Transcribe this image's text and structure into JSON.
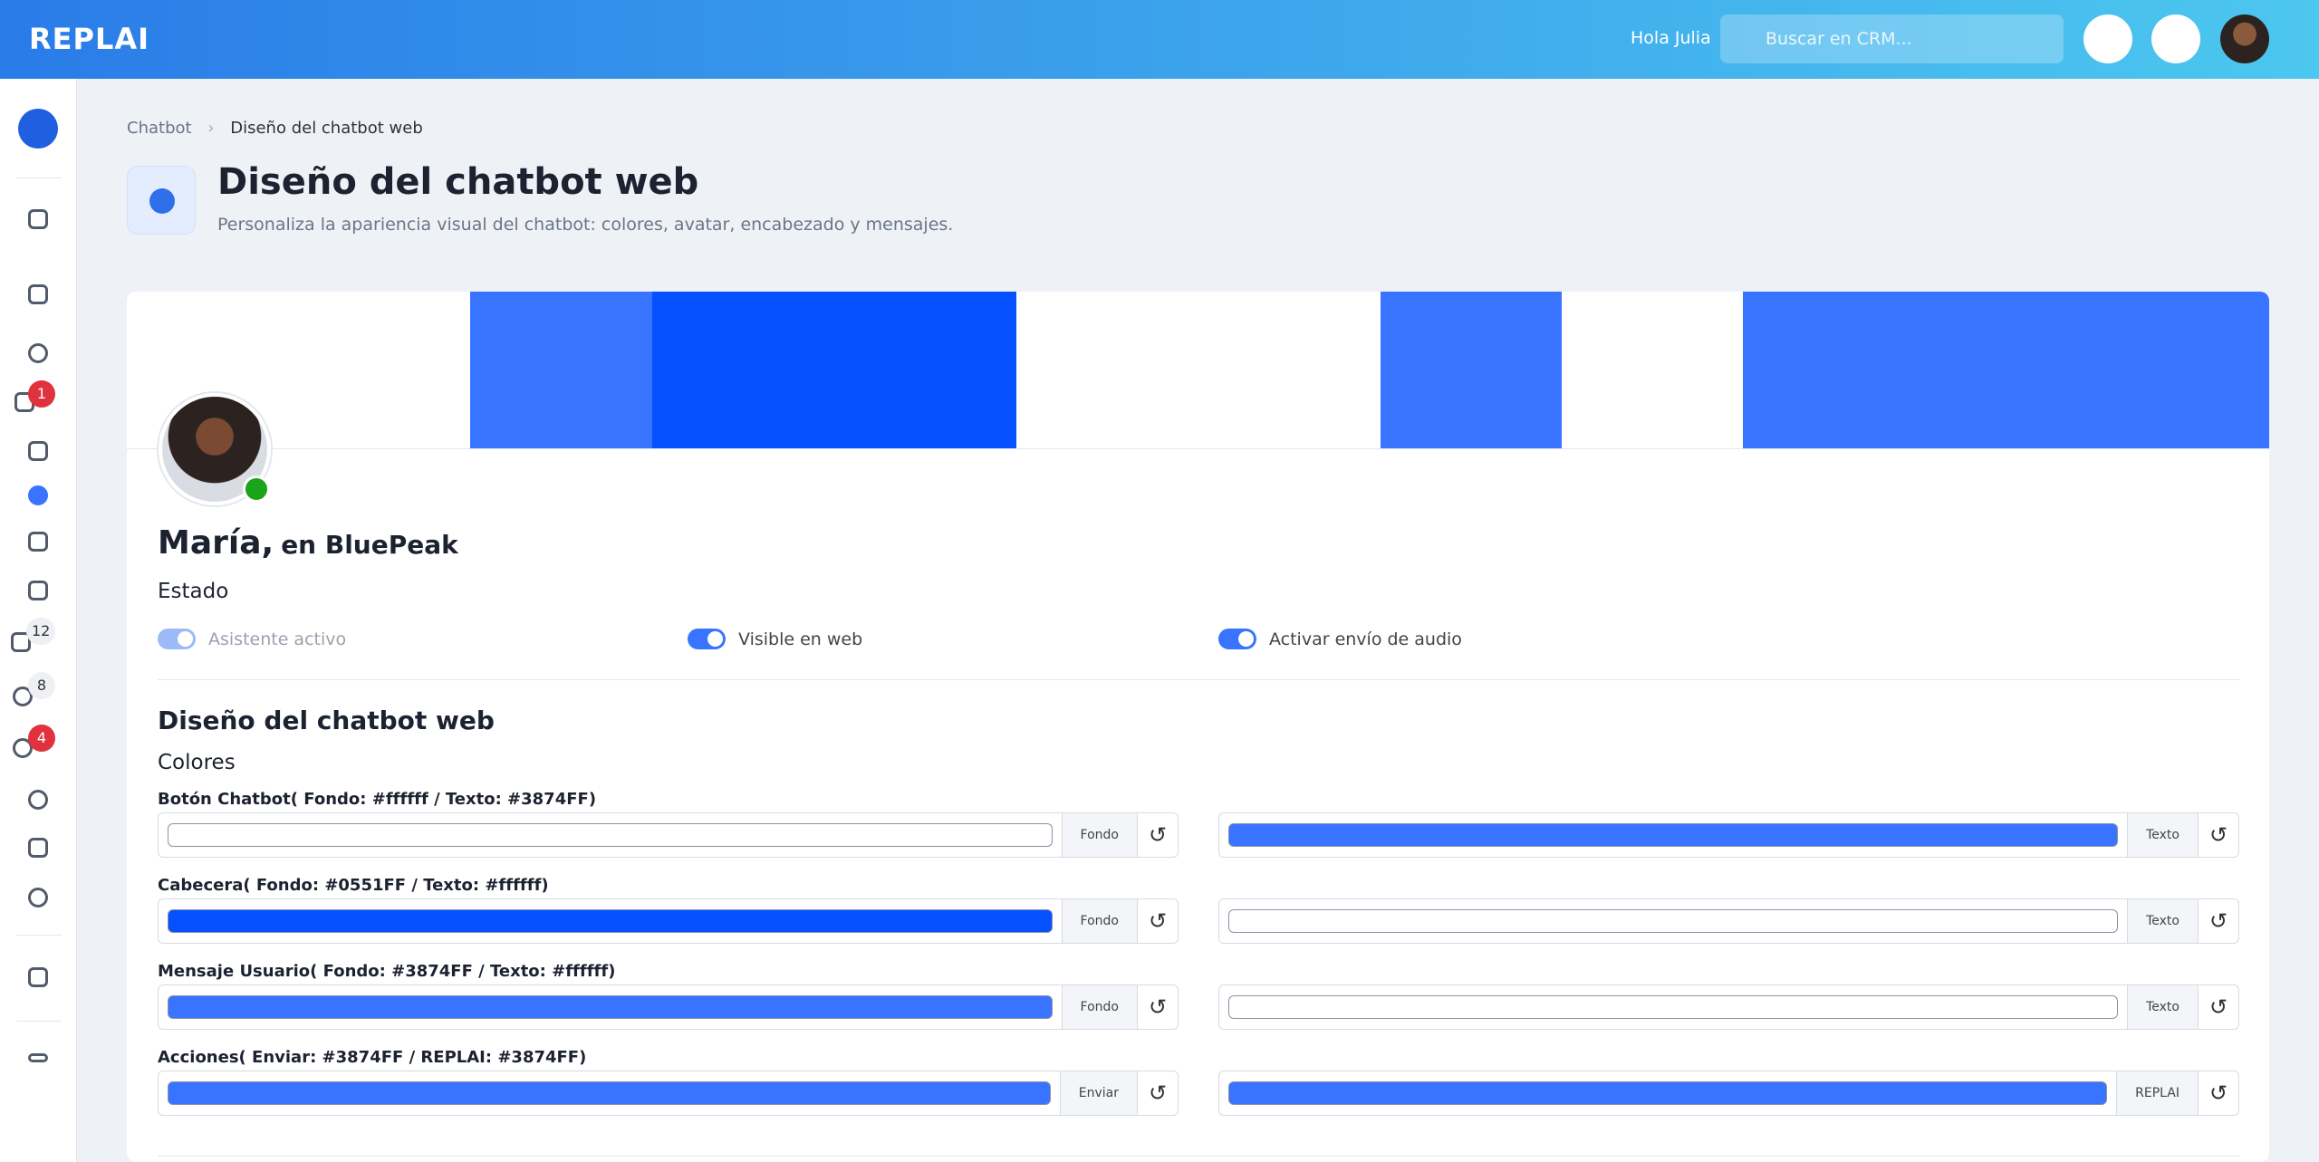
{
  "header": {
    "logo": "REPLAI",
    "greeting": "Hola Julia",
    "search_placeholder": "Buscar en CRM..."
  },
  "sidebar": {
    "badges": [
      "1",
      "12",
      "8",
      "4"
    ]
  },
  "breadcrumb": [
    "Chatbot",
    "Diseño del chatbot web"
  ],
  "page": {
    "title": "Diseño del chatbot web",
    "subtitle": "Personaliza la apariencia visual del chatbot: colores, avatar, encabezado y mensajes."
  },
  "profile": {
    "name": "María,",
    "company": "en BluePeak"
  },
  "status": {
    "title": "Estado",
    "toggles": [
      {
        "label": "Asistente activo",
        "state": "disabled"
      },
      {
        "label": "Visible en web",
        "state": "on"
      },
      {
        "label": "Activar envío de audio",
        "state": "on"
      }
    ]
  },
  "design": {
    "title": "Diseño del chatbot web",
    "subtitle": "Colores",
    "rows": [
      {
        "label": "Botón Chatbot",
        "hint": "( Fondo: #ffffff / Texto: #3874FF)",
        "left": {
          "color": "#ffffff",
          "addon": "Fondo"
        },
        "right": {
          "color": "#3874ff",
          "addon": "Texto"
        }
      },
      {
        "label": "Cabecera",
        "hint": "( Fondo: #0551FF / Texto: #ffffff)",
        "left": {
          "color": "#0551ff",
          "addon": "Fondo"
        },
        "right": {
          "color": "#ffffff",
          "addon": "Texto"
        }
      },
      {
        "label": "Mensaje Usuario",
        "hint": "( Fondo: #3874FF / Texto: #ffffff)",
        "left": {
          "color": "#3874ff",
          "addon": "Fondo"
        },
        "right": {
          "color": "#ffffff",
          "addon": "Texto"
        }
      },
      {
        "label": "Acciones",
        "hint": "( Enviar: #3874FF / REPLAI: #3874FF)",
        "left": {
          "color": "#3874ff",
          "addon": "Enviar"
        },
        "right": {
          "color": "#3874ff",
          "addon": "REPLAI"
        }
      }
    ]
  }
}
